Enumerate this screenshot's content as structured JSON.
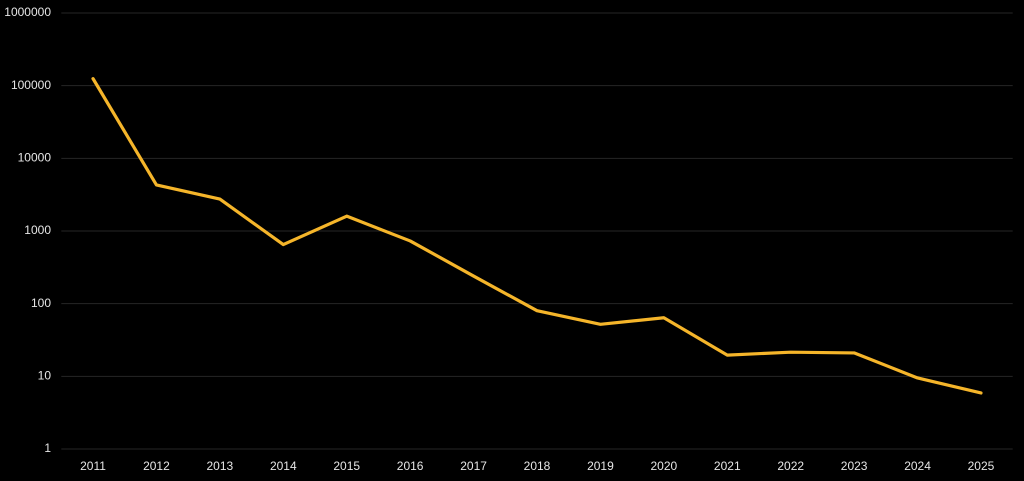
{
  "chart_data": {
    "type": "line",
    "log_scale": true,
    "grid": true,
    "categories": [
      "2011",
      "2012",
      "2013",
      "2014",
      "2015",
      "2016",
      "2017",
      "2018",
      "2019",
      "2020",
      "2021",
      "2022",
      "2023",
      "2024",
      "2025"
    ],
    "series": [
      {
        "color": "#f5b52a",
        "values": [
          125000,
          4300,
          2750,
          650,
          1600,
          730,
          240,
          80,
          52,
          64,
          19.6,
          21.5,
          21,
          9.5,
          5.9
        ]
      }
    ],
    "ylim": [
      1,
      1000000
    ],
    "yticks": [
      1,
      10,
      100,
      1000,
      10000,
      100000,
      1000000
    ]
  }
}
